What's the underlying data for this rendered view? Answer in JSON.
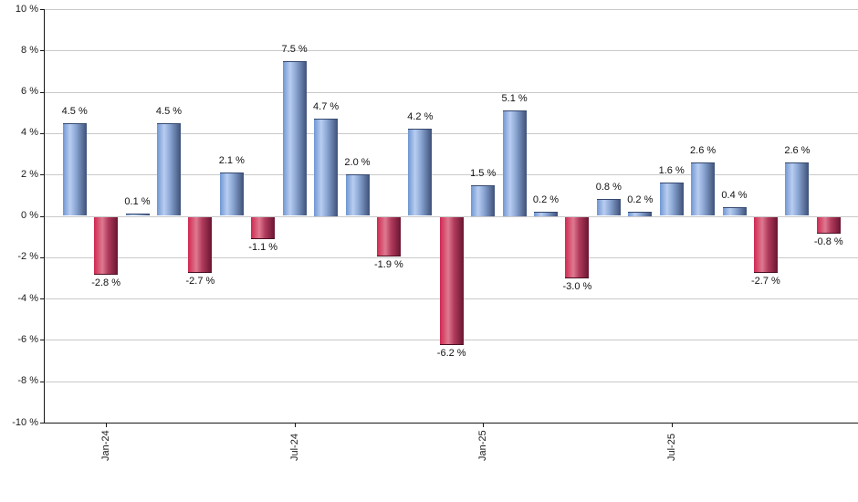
{
  "chart_data": {
    "type": "bar",
    "title": "",
    "values": [
      4.5,
      -2.8,
      0.1,
      4.5,
      -2.7,
      2.1,
      -1.1,
      7.5,
      4.7,
      2.0,
      -1.9,
      4.2,
      -6.2,
      1.5,
      5.1,
      0.2,
      -3.0,
      0.8,
      0.2,
      1.6,
      2.6,
      0.4,
      -2.7,
      2.6,
      -0.8
    ],
    "bar_value_labels": [
      "4.5 %",
      "-2.8 %",
      "0.1 %",
      "4.5 %",
      "-2.7 %",
      "2.1 %",
      "-1.1 %",
      "7.5 %",
      "4.7 %",
      "2.0 %",
      "-1.9 %",
      "4.2 %",
      "-6.2 %",
      "1.5 %",
      "5.1 %",
      "0.2 %",
      "-3.0 %",
      "0.8 %",
      "0.2 %",
      "1.6 %",
      "2.6 %",
      "0.4 %",
      "-2.7 %",
      "2.6 %",
      "-0.8 %"
    ],
    "x_axis": {
      "ticks": [
        {
          "bar_index": 1,
          "label": "Jan-24"
        },
        {
          "bar_index": 7,
          "label": "Jul-24"
        },
        {
          "bar_index": 13,
          "label": "Jan-25"
        },
        {
          "bar_index": 19,
          "label": "Jul-25"
        }
      ]
    },
    "y_axis": {
      "min": -10,
      "max": 10,
      "step": 2,
      "unit": "%",
      "tick_values": [
        10,
        8,
        6,
        4,
        2,
        0,
        -2,
        -4,
        -6,
        -8,
        -10
      ],
      "tick_labels": [
        "10 %",
        "8 %",
        "6 %",
        "4 %",
        "2 %",
        "0 %",
        "-2 %",
        "-4 %",
        "-6 %",
        "-8 %",
        "-10 %"
      ]
    },
    "grid": true,
    "legend": false,
    "colors": {
      "positive_bar_base": "#7ba1dd",
      "positive_bar_light": "#b9cdf0",
      "positive_bar_dark": "#3d5078",
      "negative_bar_base": "#cf2850",
      "negative_bar_light": "#de7a90",
      "negative_bar_dark": "#691531",
      "gridline": "#c9c9c9",
      "axis": "#161616",
      "text": "#1a1a1a",
      "background": "#ffffff"
    }
  }
}
